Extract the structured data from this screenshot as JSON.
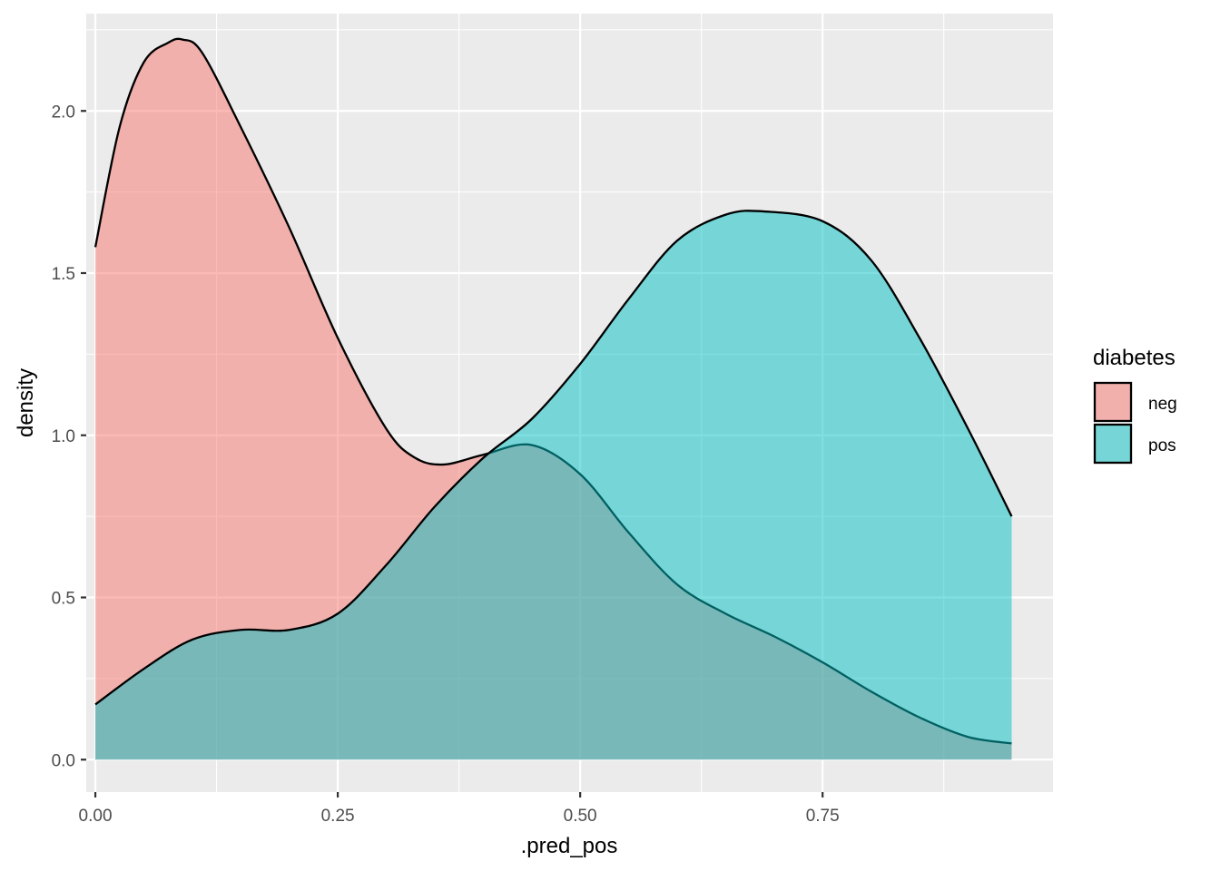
{
  "chart_data": {
    "type": "area",
    "xlabel": ".pred_pos",
    "ylabel": "density",
    "xlim": [
      -0.0094,
      0.9876
    ],
    "ylim": [
      -0.1,
      2.3
    ],
    "x_ticks": [
      0.0,
      0.25,
      0.5,
      0.75
    ],
    "x_tick_labels": [
      "0.00",
      "0.25",
      "0.50",
      "0.75"
    ],
    "y_ticks": [
      0.0,
      0.5,
      1.0,
      1.5,
      2.0
    ],
    "y_tick_labels": [
      "0.0",
      "0.5",
      "1.0",
      "1.5",
      "2.0"
    ],
    "grid": true,
    "legend": {
      "title": "diabetes",
      "position": "right"
    },
    "series": [
      {
        "name": "neg",
        "color": "#F8766D",
        "x": [
          0.0,
          0.025,
          0.05,
          0.075,
          0.09,
          0.11,
          0.15,
          0.2,
          0.25,
          0.3,
          0.33,
          0.36,
          0.4,
          0.45,
          0.5,
          0.55,
          0.6,
          0.65,
          0.7,
          0.75,
          0.8,
          0.85,
          0.9,
          0.945
        ],
        "values": [
          1.58,
          1.95,
          2.15,
          2.21,
          2.22,
          2.18,
          1.95,
          1.64,
          1.3,
          1.02,
          0.93,
          0.91,
          0.94,
          0.97,
          0.88,
          0.7,
          0.54,
          0.45,
          0.38,
          0.3,
          0.21,
          0.13,
          0.07,
          0.05
        ]
      },
      {
        "name": "pos",
        "color": "#00BFC4",
        "x": [
          0.0,
          0.05,
          0.1,
          0.15,
          0.2,
          0.25,
          0.3,
          0.35,
          0.4,
          0.45,
          0.5,
          0.55,
          0.6,
          0.65,
          0.69,
          0.75,
          0.8,
          0.85,
          0.9,
          0.945
        ],
        "values": [
          0.17,
          0.28,
          0.37,
          0.4,
          0.4,
          0.45,
          0.6,
          0.78,
          0.93,
          1.05,
          1.22,
          1.42,
          1.6,
          1.68,
          1.69,
          1.66,
          1.54,
          1.3,
          1.02,
          0.75
        ]
      }
    ]
  }
}
